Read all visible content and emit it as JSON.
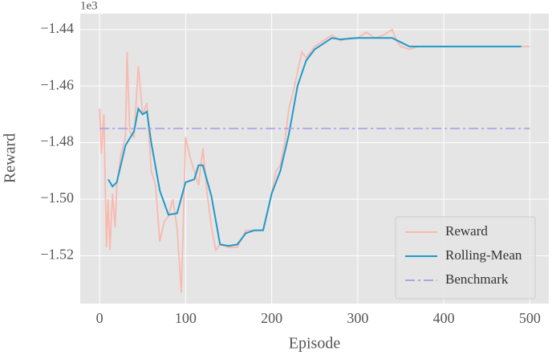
{
  "chart_data": {
    "type": "line",
    "x_label": "Episode",
    "y_label": "Reward",
    "y_offset_label": "1e3",
    "xlim": [
      -22.5,
      522
    ],
    "ylim": [
      -1536.9,
      -1434.4
    ],
    "xticks": [
      0,
      100,
      200,
      300,
      400,
      500
    ],
    "yticks": [
      {
        "value": -1440,
        "label": "−1.44"
      },
      {
        "value": -1460,
        "label": "−1.46"
      },
      {
        "value": -1480,
        "label": "−1.48"
      },
      {
        "value": -1500,
        "label": "−1.50"
      },
      {
        "value": -1520,
        "label": "−1.52"
      }
    ],
    "grid": true,
    "legend": "lower right",
    "series": [
      {
        "name": "Reward",
        "color": "#f9b9ae",
        "linestyle": "solid",
        "x": [
          0,
          2,
          5,
          8,
          10,
          12,
          15,
          18,
          20,
          25,
          30,
          32,
          35,
          40,
          45,
          50,
          55,
          60,
          65,
          70,
          75,
          80,
          85,
          90,
          95,
          100,
          105,
          110,
          115,
          120,
          125,
          130,
          135,
          140,
          150,
          160,
          170,
          180,
          190,
          200,
          205,
          210,
          215,
          220,
          225,
          230,
          235,
          240,
          250,
          260,
          270,
          280,
          290,
          300,
          310,
          320,
          330,
          340,
          345,
          350,
          360,
          370,
          380,
          400,
          420,
          440,
          460,
          480,
          500
        ],
        "values": [
          -1468,
          -1484,
          -1470,
          -1517,
          -1500,
          -1518,
          -1498,
          -1510,
          -1495,
          -1484,
          -1478,
          -1448,
          -1476,
          -1478,
          -1453,
          -1470,
          -1466,
          -1490,
          -1495,
          -1515,
          -1508,
          -1506,
          -1500,
          -1510,
          -1533,
          -1478,
          -1485,
          -1490,
          -1495,
          -1482,
          -1498,
          -1510,
          -1518,
          -1516,
          -1517,
          -1517,
          -1511,
          -1511,
          -1511,
          -1498,
          -1490,
          -1488,
          -1480,
          -1468,
          -1462,
          -1455,
          -1448,
          -1450,
          -1446,
          -1444,
          -1442,
          -1444,
          -1443,
          -1443,
          -1441,
          -1443,
          -1442,
          -1440,
          -1444,
          -1446,
          -1447,
          -1446,
          -1446,
          -1446,
          -1446,
          -1446,
          -1446,
          -1446,
          -1446
        ]
      },
      {
        "name": "Rolling-Mean",
        "color": "#1f9ac9",
        "linestyle": "solid",
        "x": [
          10,
          15,
          20,
          30,
          40,
          45,
          50,
          55,
          60,
          70,
          80,
          90,
          100,
          110,
          115,
          120,
          130,
          140,
          150,
          160,
          170,
          180,
          190,
          200,
          210,
          220,
          230,
          240,
          250,
          260,
          270,
          280,
          300,
          320,
          340,
          350,
          360,
          400,
          450,
          490
        ],
        "values": [
          -1493,
          -1495.5,
          -1494,
          -1481,
          -1476,
          -1468,
          -1470,
          -1469,
          -1480,
          -1497,
          -1505.5,
          -1505,
          -1494,
          -1493,
          -1488,
          -1488,
          -1499,
          -1516,
          -1516.5,
          -1516,
          -1512,
          -1511,
          -1511,
          -1498,
          -1490,
          -1477,
          -1460,
          -1451,
          -1447,
          -1445,
          -1443,
          -1443.5,
          -1443,
          -1443,
          -1443,
          -1444.5,
          -1446,
          -1446,
          -1446,
          -1446
        ]
      },
      {
        "name": "Benchmark",
        "color": "#b3a3e6",
        "linestyle": "dashdot",
        "x": [
          0,
          500
        ],
        "values": [
          -1475,
          -1475
        ]
      }
    ]
  }
}
